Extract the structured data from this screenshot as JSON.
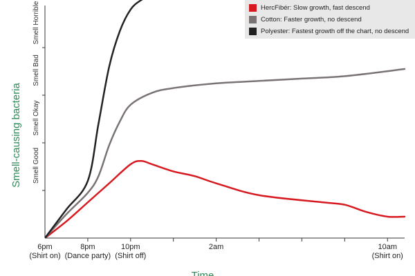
{
  "chart_data": {
    "type": "line",
    "title": "",
    "ylabel": "Smell-causing bacteria",
    "xlabel": "Time",
    "x_ticks": [
      {
        "x": 0,
        "line1": "6pm",
        "line2": "(Shirt on)"
      },
      {
        "x": 2,
        "line1": "8pm",
        "line2": "(Dance party)"
      },
      {
        "x": 4,
        "line1": "10pm",
        "line2": "(Shirt off)"
      },
      {
        "x": 8,
        "line1": "2am",
        "line2": ""
      },
      {
        "x": 16,
        "line1": "10am",
        "line2": "(Shirt on)"
      }
    ],
    "y_categories": [
      {
        "y": 1,
        "label": "Smell Good"
      },
      {
        "y": 2,
        "label": "Smell Okay"
      },
      {
        "y": 3,
        "label": "Smell Bad"
      },
      {
        "y": 4,
        "label": "Smell Horrible"
      }
    ],
    "ylim": [
      0,
      5
    ],
    "grid": false,
    "legend_position": "top-right",
    "series": [
      {
        "name": "HercFibér: Slow growth, fast descend",
        "color": "#d71920",
        "points": [
          [
            0,
            0
          ],
          [
            1,
            0.35
          ],
          [
            2,
            0.75
          ],
          [
            3,
            1.15
          ],
          [
            4,
            1.55
          ],
          [
            4.5,
            1.62
          ],
          [
            5,
            1.55
          ],
          [
            6,
            1.4
          ],
          [
            7,
            1.3
          ],
          [
            8,
            1.15
          ],
          [
            10,
            0.9
          ],
          [
            13,
            0.75
          ],
          [
            14,
            0.7
          ],
          [
            15,
            0.55
          ],
          [
            16,
            0.45
          ],
          [
            16.8,
            0.45
          ]
        ]
      },
      {
        "name": "Cotton: Faster growth, no descend",
        "color": "#7a7374",
        "points": [
          [
            0,
            0
          ],
          [
            1,
            0.5
          ],
          [
            2,
            0.95
          ],
          [
            2.5,
            1.3
          ],
          [
            3,
            1.95
          ],
          [
            3.5,
            2.45
          ],
          [
            4,
            2.8
          ],
          [
            5,
            3.05
          ],
          [
            6,
            3.15
          ],
          [
            8,
            3.25
          ],
          [
            10,
            3.3
          ],
          [
            12,
            3.35
          ],
          [
            14,
            3.4
          ],
          [
            16.8,
            3.55
          ]
        ]
      },
      {
        "name": "Polyester: Fastest growth off the chart, no descend",
        "color": "#222222",
        "points": [
          [
            0,
            0
          ],
          [
            1,
            0.6
          ],
          [
            2,
            1.2
          ],
          [
            2.5,
            2.4
          ],
          [
            3,
            3.6
          ],
          [
            3.5,
            4.35
          ],
          [
            4,
            4.8
          ],
          [
            4.5,
            5.0
          ],
          [
            5,
            5.1
          ]
        ]
      }
    ]
  }
}
